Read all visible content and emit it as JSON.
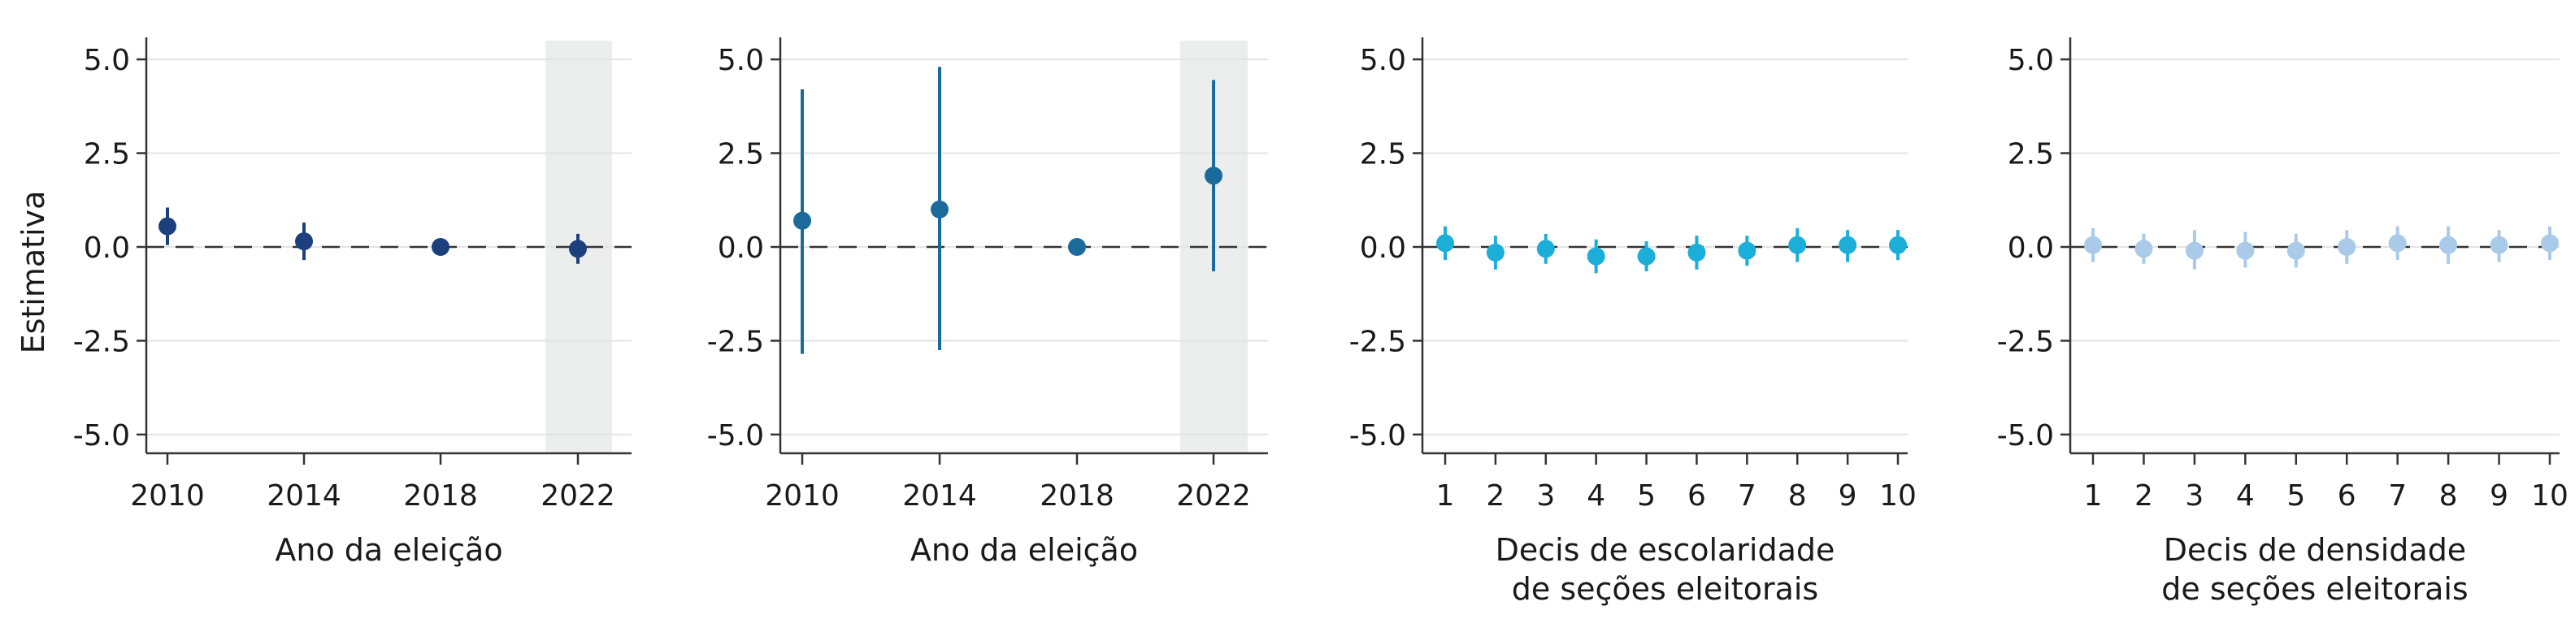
{
  "y_axis_label": "Estimativa",
  "chart_data": [
    {
      "type": "scatter",
      "x": [
        "2010",
        "2014",
        "2018",
        "2022"
      ],
      "y": [
        0.55,
        0.15,
        0.0,
        -0.05
      ],
      "ci_low": [
        0.05,
        -0.35,
        -0.1,
        -0.45
      ],
      "ci_high": [
        1.05,
        0.65,
        0.1,
        0.35
      ],
      "highlight": "2022",
      "xlabel": [
        "Ano da eleição"
      ],
      "ylabel": "Estimativa",
      "ylim": [
        -5.5,
        5.5
      ],
      "yticks": [
        "5.0",
        "2.5",
        "0.0",
        "-2.5",
        "-5.0"
      ],
      "color": "#1c3f7e"
    },
    {
      "type": "scatter",
      "x": [
        "2010",
        "2014",
        "2018",
        "2022"
      ],
      "y": [
        0.7,
        1.0,
        0.0,
        1.9
      ],
      "ci_low": [
        -2.85,
        -2.75,
        -0.1,
        -0.65
      ],
      "ci_high": [
        4.2,
        4.8,
        0.1,
        4.45
      ],
      "highlight": "2022",
      "xlabel": [
        "Ano da eleição"
      ],
      "ylabel": "",
      "ylim": [
        -5.5,
        5.5
      ],
      "yticks": [
        "5.0",
        "2.5",
        "0.0",
        "-2.5",
        "-5.0"
      ],
      "color": "#1a6b9c"
    },
    {
      "type": "scatter",
      "x": [
        "1",
        "2",
        "3",
        "4",
        "5",
        "6",
        "7",
        "8",
        "9",
        "10"
      ],
      "y": [
        0.1,
        -0.15,
        -0.05,
        -0.25,
        -0.25,
        -0.15,
        -0.1,
        0.05,
        0.05,
        0.05
      ],
      "ci_low": [
        -0.35,
        -0.6,
        -0.45,
        -0.7,
        -0.65,
        -0.6,
        -0.5,
        -0.4,
        -0.4,
        -0.35
      ],
      "ci_high": [
        0.55,
        0.3,
        0.35,
        0.2,
        0.15,
        0.3,
        0.3,
        0.5,
        0.45,
        0.45
      ],
      "xlabel": [
        "Decis de escolaridade",
        "de seções eleitorais"
      ],
      "ylabel": "",
      "ylim": [
        -5.5,
        5.5
      ],
      "yticks": [
        "5.0",
        "2.5",
        "0.0",
        "-2.5",
        "-5.0"
      ],
      "color": "#1aaed8"
    },
    {
      "type": "scatter",
      "x": [
        "1",
        "2",
        "3",
        "4",
        "5",
        "6",
        "7",
        "8",
        "9",
        "10"
      ],
      "y": [
        0.05,
        -0.05,
        -0.1,
        -0.1,
        -0.1,
        0.0,
        0.1,
        0.05,
        0.05,
        0.1
      ],
      "ci_low": [
        -0.4,
        -0.45,
        -0.6,
        -0.55,
        -0.55,
        -0.45,
        -0.35,
        -0.45,
        -0.4,
        -0.35
      ],
      "ci_high": [
        0.5,
        0.35,
        0.45,
        0.4,
        0.35,
        0.45,
        0.55,
        0.55,
        0.45,
        0.55
      ],
      "xlabel": [
        "Decis de densidade",
        "de seções eleitorais"
      ],
      "ylabel": "",
      "ylim": [
        -5.5,
        5.5
      ],
      "yticks": [
        "5.0",
        "2.5",
        "0.0",
        "-2.5",
        "-5.0"
      ],
      "color": "#a9cbe9"
    }
  ]
}
